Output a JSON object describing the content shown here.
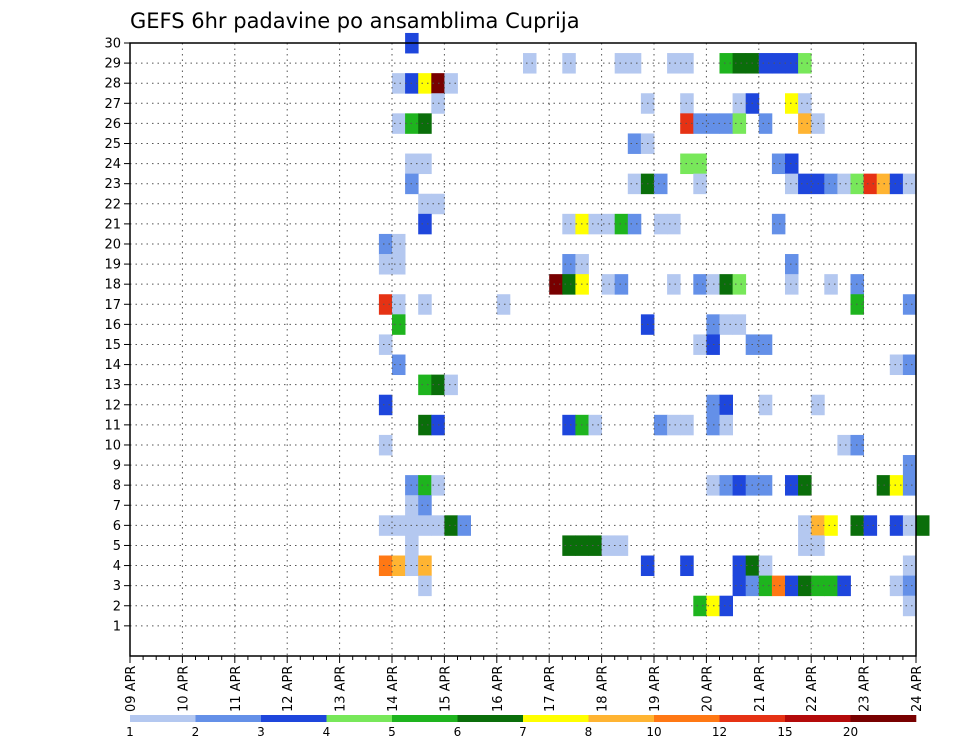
{
  "chart_data": {
    "type": "heatmap",
    "title": "GEFS 6hr padavine po ansamblima Cuprija",
    "x_tick_labels": [
      "09 APR",
      "10 APR",
      "11 APR",
      "12 APR",
      "13 APR",
      "14 APR",
      "15 APR",
      "16 APR",
      "17 APR",
      "18 APR",
      "19 APR",
      "20 APR",
      "21 APR",
      "22 APR",
      "23 APR",
      "24 APR"
    ],
    "x_range": [
      "09 APR",
      "24 APR"
    ],
    "x_step_hours": 6,
    "y_tick_labels": [
      "1",
      "2",
      "3",
      "4",
      "5",
      "6",
      "7",
      "8",
      "9",
      "10",
      "11",
      "12",
      "13",
      "14",
      "15",
      "16",
      "17",
      "18",
      "19",
      "20",
      "21",
      "22",
      "23",
      "24",
      "25",
      "26",
      "27",
      "28",
      "29",
      "30"
    ],
    "y_range": [
      0,
      30
    ],
    "grid": true,
    "legend": {
      "placement": "bottom",
      "thresholds": [
        "1",
        "2",
        "3",
        "4",
        "5",
        "6",
        "7",
        "8",
        "10",
        "12",
        "15",
        "20"
      ],
      "colors": [
        "#b4c8f0",
        "#6490e8",
        "#1e46dc",
        "#78e85a",
        "#1eb41e",
        "#0a6e0a",
        "#ffff00",
        "#ffb432",
        "#ff7814",
        "#e63214",
        "#b40a0a",
        "#780000"
      ]
    },
    "cells_note": "each cell: [member (y), 6-hourly step index from 09 APR 00z, precipitation class index into legend.colors]",
    "cells": [
      [
        30,
        21,
        2
      ],
      [
        29,
        30,
        0
      ],
      [
        29,
        33,
        0
      ],
      [
        29,
        37,
        0
      ],
      [
        29,
        38,
        0
      ],
      [
        29,
        41,
        0
      ],
      [
        29,
        42,
        0
      ],
      [
        29,
        45,
        4
      ],
      [
        29,
        46,
        5
      ],
      [
        29,
        47,
        5
      ],
      [
        29,
        48,
        2
      ],
      [
        29,
        49,
        2
      ],
      [
        29,
        50,
        2
      ],
      [
        29,
        51,
        3
      ],
      [
        28,
        20,
        0
      ],
      [
        28,
        21,
        2
      ],
      [
        28,
        22,
        6
      ],
      [
        28,
        23,
        11
      ],
      [
        28,
        24,
        0
      ],
      [
        27,
        23,
        0
      ],
      [
        27,
        39,
        0
      ],
      [
        27,
        42,
        0
      ],
      [
        27,
        46,
        0
      ],
      [
        27,
        47,
        2
      ],
      [
        27,
        50,
        6
      ],
      [
        27,
        51,
        0
      ],
      [
        26,
        20,
        0
      ],
      [
        26,
        21,
        4
      ],
      [
        26,
        22,
        5
      ],
      [
        26,
        42,
        9
      ],
      [
        26,
        43,
        1
      ],
      [
        26,
        44,
        1
      ],
      [
        26,
        45,
        1
      ],
      [
        26,
        46,
        3
      ],
      [
        26,
        48,
        1
      ],
      [
        26,
        51,
        7
      ],
      [
        26,
        52,
        0
      ],
      [
        25,
        38,
        1
      ],
      [
        25,
        39,
        0
      ],
      [
        24,
        21,
        0
      ],
      [
        24,
        22,
        0
      ],
      [
        24,
        42,
        3
      ],
      [
        24,
        43,
        3
      ],
      [
        24,
        49,
        1
      ],
      [
        24,
        50,
        2
      ],
      [
        23,
        21,
        1
      ],
      [
        23,
        38,
        0
      ],
      [
        23,
        39,
        5
      ],
      [
        23,
        40,
        1
      ],
      [
        23,
        43,
        0
      ],
      [
        23,
        50,
        0
      ],
      [
        23,
        51,
        2
      ],
      [
        23,
        52,
        2
      ],
      [
        23,
        53,
        1
      ],
      [
        23,
        54,
        0
      ],
      [
        23,
        55,
        3
      ],
      [
        23,
        56,
        9
      ],
      [
        23,
        57,
        7
      ],
      [
        23,
        58,
        2
      ],
      [
        23,
        59,
        0
      ],
      [
        22,
        22,
        0
      ],
      [
        22,
        23,
        0
      ],
      [
        21,
        22,
        2
      ],
      [
        21,
        33,
        0
      ],
      [
        21,
        34,
        6
      ],
      [
        21,
        35,
        0
      ],
      [
        21,
        36,
        0
      ],
      [
        21,
        37,
        4
      ],
      [
        21,
        38,
        1
      ],
      [
        21,
        40,
        0
      ],
      [
        21,
        41,
        0
      ],
      [
        21,
        49,
        1
      ],
      [
        20,
        19,
        1
      ],
      [
        20,
        20,
        0
      ],
      [
        19,
        19,
        0
      ],
      [
        19,
        20,
        0
      ],
      [
        19,
        33,
        1
      ],
      [
        19,
        34,
        0
      ],
      [
        19,
        50,
        1
      ],
      [
        18,
        32,
        11
      ],
      [
        18,
        33,
        5
      ],
      [
        18,
        34,
        6
      ],
      [
        18,
        36,
        0
      ],
      [
        18,
        37,
        1
      ],
      [
        18,
        41,
        0
      ],
      [
        18,
        43,
        1
      ],
      [
        18,
        44,
        0
      ],
      [
        18,
        45,
        5
      ],
      [
        18,
        46,
        3
      ],
      [
        18,
        50,
        0
      ],
      [
        18,
        53,
        0
      ],
      [
        18,
        55,
        1
      ],
      [
        17,
        19,
        9
      ],
      [
        17,
        20,
        0
      ],
      [
        17,
        22,
        0
      ],
      [
        17,
        28,
        0
      ],
      [
        17,
        55,
        4
      ],
      [
        17,
        59,
        1
      ],
      [
        16,
        20,
        4
      ],
      [
        16,
        39,
        2
      ],
      [
        16,
        44,
        1
      ],
      [
        16,
        45,
        0
      ],
      [
        16,
        46,
        0
      ],
      [
        15,
        19,
        0
      ],
      [
        15,
        43,
        0
      ],
      [
        15,
        44,
        2
      ],
      [
        15,
        47,
        1
      ],
      [
        15,
        48,
        1
      ],
      [
        14,
        20,
        1
      ],
      [
        14,
        58,
        0
      ],
      [
        14,
        59,
        1
      ],
      [
        13,
        22,
        4
      ],
      [
        13,
        23,
        5
      ],
      [
        13,
        24,
        0
      ],
      [
        12,
        19,
        2
      ],
      [
        12,
        44,
        1
      ],
      [
        12,
        45,
        2
      ],
      [
        12,
        48,
        0
      ],
      [
        12,
        52,
        0
      ],
      [
        11,
        22,
        5
      ],
      [
        11,
        23,
        2
      ],
      [
        11,
        33,
        2
      ],
      [
        11,
        34,
        4
      ],
      [
        11,
        35,
        0
      ],
      [
        11,
        40,
        1
      ],
      [
        11,
        41,
        0
      ],
      [
        11,
        42,
        0
      ],
      [
        11,
        44,
        1
      ],
      [
        11,
        45,
        0
      ],
      [
        10,
        19,
        0
      ],
      [
        10,
        54,
        0
      ],
      [
        10,
        55,
        1
      ],
      [
        9,
        59,
        1
      ],
      [
        8,
        21,
        1
      ],
      [
        8,
        22,
        4
      ],
      [
        8,
        23,
        0
      ],
      [
        8,
        44,
        0
      ],
      [
        8,
        45,
        1
      ],
      [
        8,
        46,
        2
      ],
      [
        8,
        47,
        1
      ],
      [
        8,
        48,
        1
      ],
      [
        8,
        50,
        2
      ],
      [
        8,
        51,
        5
      ],
      [
        8,
        57,
        5
      ],
      [
        8,
        58,
        6
      ],
      [
        8,
        59,
        1
      ],
      [
        7,
        21,
        0
      ],
      [
        7,
        22,
        1
      ],
      [
        6,
        19,
        0
      ],
      [
        6,
        20,
        0
      ],
      [
        6,
        21,
        0
      ],
      [
        6,
        22,
        0
      ],
      [
        6,
        23,
        0
      ],
      [
        6,
        24,
        5
      ],
      [
        6,
        25,
        1
      ],
      [
        6,
        51,
        0
      ],
      [
        6,
        52,
        7
      ],
      [
        6,
        53,
        6
      ],
      [
        6,
        55,
        5
      ],
      [
        6,
        56,
        2
      ],
      [
        6,
        58,
        2
      ],
      [
        6,
        59,
        0
      ],
      [
        6,
        60,
        5
      ],
      [
        5,
        21,
        0
      ],
      [
        5,
        33,
        5
      ],
      [
        5,
        34,
        5
      ],
      [
        5,
        35,
        5
      ],
      [
        5,
        36,
        0
      ],
      [
        5,
        37,
        0
      ],
      [
        5,
        51,
        0
      ],
      [
        5,
        52,
        0
      ],
      [
        4,
        19,
        8
      ],
      [
        4,
        20,
        7
      ],
      [
        4,
        21,
        0
      ],
      [
        4,
        22,
        7
      ],
      [
        4,
        39,
        2
      ],
      [
        4,
        42,
        2
      ],
      [
        4,
        46,
        2
      ],
      [
        4,
        47,
        5
      ],
      [
        4,
        48,
        0
      ],
      [
        4,
        59,
        0
      ],
      [
        3,
        22,
        0
      ],
      [
        3,
        46,
        2
      ],
      [
        3,
        47,
        1
      ],
      [
        3,
        48,
        4
      ],
      [
        3,
        49,
        8
      ],
      [
        3,
        50,
        2
      ],
      [
        3,
        51,
        5
      ],
      [
        3,
        52,
        4
      ],
      [
        3,
        53,
        4
      ],
      [
        3,
        54,
        2
      ],
      [
        3,
        58,
        0
      ],
      [
        3,
        59,
        1
      ],
      [
        2,
        43,
        4
      ],
      [
        2,
        44,
        6
      ],
      [
        2,
        45,
        2
      ],
      [
        2,
        59,
        0
      ]
    ]
  }
}
